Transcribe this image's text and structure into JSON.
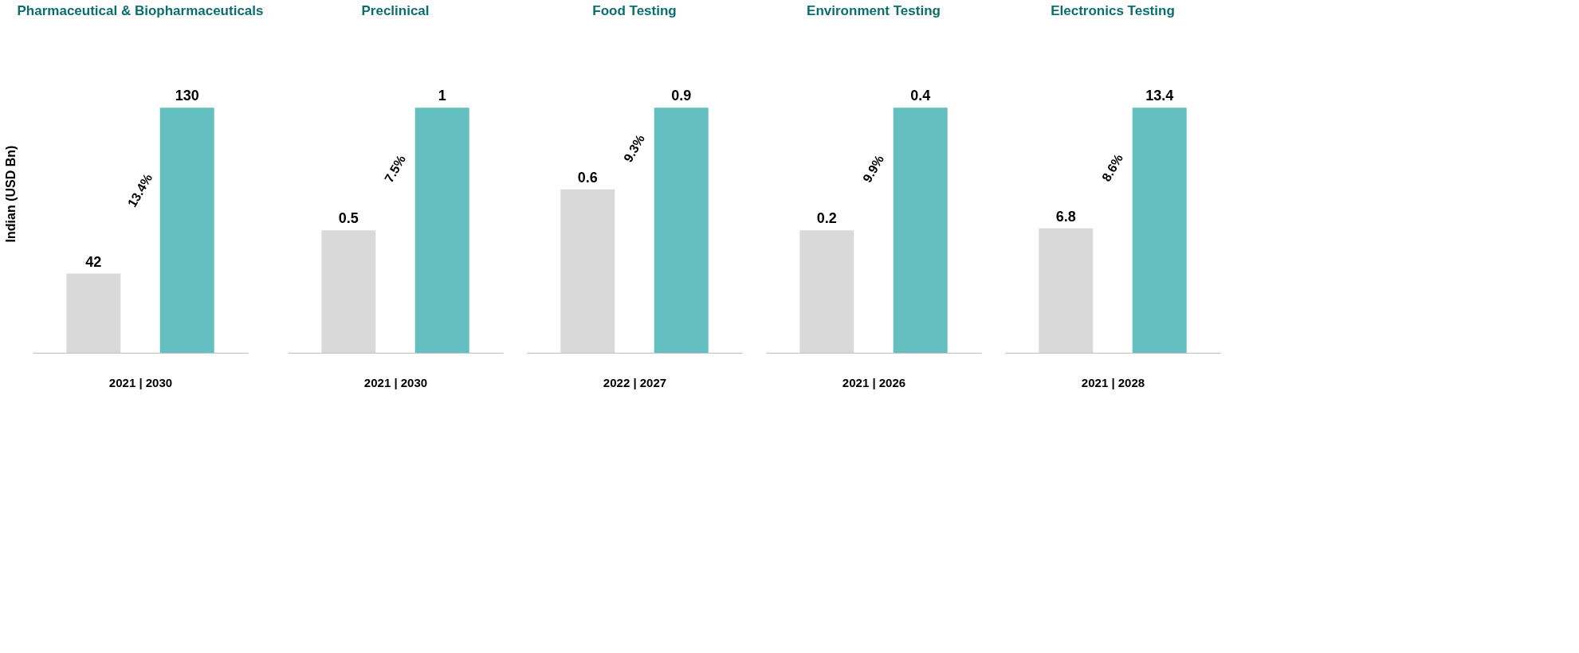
{
  "chart_data": [
    {
      "type": "bar",
      "title": "Pharmaceutical & Biopharmaceuticals",
      "ylabel": "Indian (USD Bn)",
      "xlabel": "2021 | 2030",
      "categories": [
        null,
        null
      ],
      "values": [
        42,
        130
      ],
      "colors": [
        "#d9d9d9",
        "#64bfc1"
      ],
      "data_labels": true,
      "tick_labels": false,
      "annotations": [
        "13.4%"
      ]
    },
    {
      "type": "bar",
      "title": "Preclinical",
      "xlabel": "2021 | 2030",
      "categories": [
        null,
        null
      ],
      "values": [
        0.5,
        1
      ],
      "colors": [
        "#d9d9d9",
        "#64bfc1"
      ],
      "data_labels": true,
      "tick_labels": false,
      "annotations": [
        "7.5%"
      ]
    },
    {
      "type": "bar",
      "title": "Food Testing",
      "xlabel": "2022 | 2027",
      "categories": [
        null,
        null
      ],
      "values": [
        0.6,
        0.9
      ],
      "colors": [
        "#d9d9d9",
        "#64bfc1"
      ],
      "data_labels": true,
      "tick_labels": false,
      "annotations": [
        "9.3%"
      ]
    },
    {
      "type": "bar",
      "title": "Environment Testing",
      "xlabel": "2021 | 2026",
      "categories": [
        null,
        null
      ],
      "values": [
        0.2,
        0.4
      ],
      "colors": [
        "#d9d9d9",
        "#64bfc1"
      ],
      "data_labels": true,
      "tick_labels": false,
      "annotations": [
        "9.9%"
      ]
    },
    {
      "type": "bar",
      "title": "Electronics Testing",
      "xlabel": "2021 | 2028",
      "categories": [
        null,
        null
      ],
      "values": [
        6.8,
        13.4
      ],
      "colors": [
        "#d9d9d9",
        "#64bfc1"
      ],
      "data_labels": true,
      "tick_labels": false,
      "annotations": [
        "8.6%"
      ]
    }
  ]
}
